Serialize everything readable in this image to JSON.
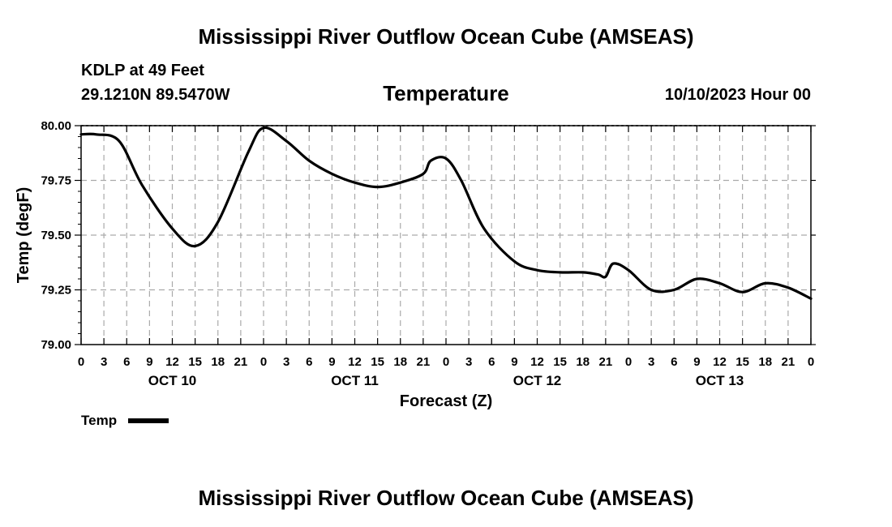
{
  "header": {
    "title": "Mississippi River Outflow Ocean Cube (AMSEAS)",
    "station": "KDLP at 49 Feet",
    "coords": "29.1210N  89.5470W",
    "subtitle": "Temperature",
    "datetime": "10/10/2023 Hour 00"
  },
  "footer": {
    "title": "Mississippi River Outflow Ocean Cube (AMSEAS)"
  },
  "legend": {
    "label": "Temp",
    "color": "#000000"
  },
  "chart_data": {
    "type": "line",
    "title": "Temperature",
    "xlabel": "Forecast (Z)",
    "ylabel": "Temp (degF)",
    "x_unit": "hours since 10/10/2023 00Z",
    "xlim": [
      0,
      96
    ],
    "ylim": [
      79.0,
      80.0
    ],
    "yticks": [
      "79.00",
      "79.25",
      "79.50",
      "79.75",
      "80.00"
    ],
    "xtick_labels": [
      "0",
      "3",
      "6",
      "9",
      "12",
      "15",
      "18",
      "21",
      "0",
      "3",
      "6",
      "9",
      "12",
      "15",
      "18",
      "21",
      "0",
      "3",
      "6",
      "9",
      "12",
      "15",
      "18",
      "21",
      "0",
      "3",
      "6",
      "9",
      "12",
      "15",
      "18",
      "21",
      "0"
    ],
    "day_labels": [
      "OCT 10",
      "OCT 11",
      "OCT 12",
      "OCT 13"
    ],
    "grid": true,
    "series": [
      {
        "name": "Temp",
        "x": [
          0,
          2,
          5,
          8,
          12,
          15,
          18,
          22,
          24,
          27,
          30,
          33,
          36,
          39,
          42,
          45,
          46,
          48,
          50,
          53,
          57,
          60,
          63,
          66,
          68,
          69,
          70,
          72,
          75,
          78,
          81,
          84,
          87,
          90,
          93,
          96
        ],
        "y": [
          79.96,
          79.96,
          79.93,
          79.73,
          79.53,
          79.45,
          79.56,
          79.88,
          79.99,
          79.93,
          79.84,
          79.78,
          79.74,
          79.72,
          79.74,
          79.78,
          79.84,
          79.85,
          79.75,
          79.53,
          79.38,
          79.34,
          79.33,
          79.33,
          79.32,
          79.31,
          79.37,
          79.34,
          79.25,
          79.25,
          79.3,
          79.28,
          79.24,
          79.28,
          79.26,
          79.21
        ]
      }
    ]
  }
}
